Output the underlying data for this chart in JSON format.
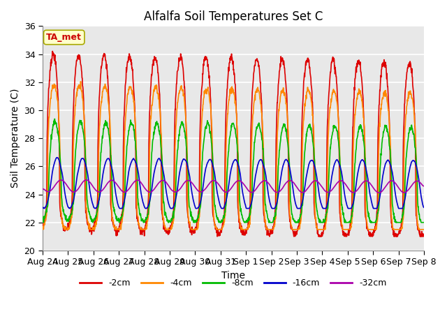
{
  "title": "Alfalfa Soil Temperatures Set C",
  "xlabel": "Time",
  "ylabel": "Soil Temperature (C)",
  "ylim": [
    20,
    36
  ],
  "background_color": "#e8e8e8",
  "grid_color": "white",
  "series": {
    "-2cm": {
      "color": "#dd0000",
      "lw": 1.2
    },
    "-4cm": {
      "color": "#ff8800",
      "lw": 1.2
    },
    "-8cm": {
      "color": "#00bb00",
      "lw": 1.2
    },
    "-16cm": {
      "color": "#0000cc",
      "lw": 1.2
    },
    "-32cm": {
      "color": "#aa00aa",
      "lw": 1.2
    }
  },
  "annotation_text": "TA_met",
  "annotation_color": "#cc0000",
  "annotation_bg": "#ffffcc",
  "tick_labels": [
    "Aug 24",
    "Aug 25",
    "Aug 26",
    "Aug 27",
    "Aug 28",
    "Aug 29",
    "Aug 30",
    "Aug 31",
    "Sep 1",
    "Sep 2",
    "Sep 3",
    "Sep 4",
    "Sep 5",
    "Sep 6",
    "Sep 7",
    "Sep 8"
  ],
  "yticks": [
    20,
    22,
    24,
    26,
    28,
    30,
    32,
    34,
    36
  ]
}
